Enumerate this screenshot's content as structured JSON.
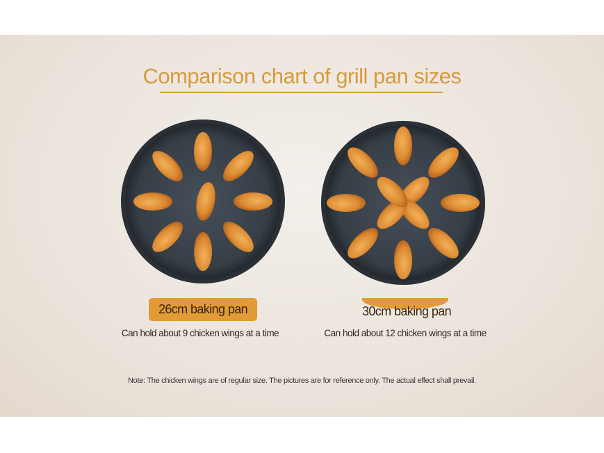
{
  "title": "Comparison chart of grill pan sizes",
  "pans": [
    {
      "label": "26cm baking pan",
      "capacity": "Can hold about 9 chicken wings at a time",
      "wings": 9
    },
    {
      "label": "30cm baking pan",
      "capacity": "Can hold about 12 chicken wings at a time",
      "wings": 12
    }
  ],
  "note": "Note: The chicken wings are of regular size. The pictures are for reference only. The actual effect shall prevail.",
  "colors": {
    "accent": "#e29b36",
    "title": "#d99a3e",
    "pan": "#3b434a",
    "wing": "#e0913a"
  }
}
